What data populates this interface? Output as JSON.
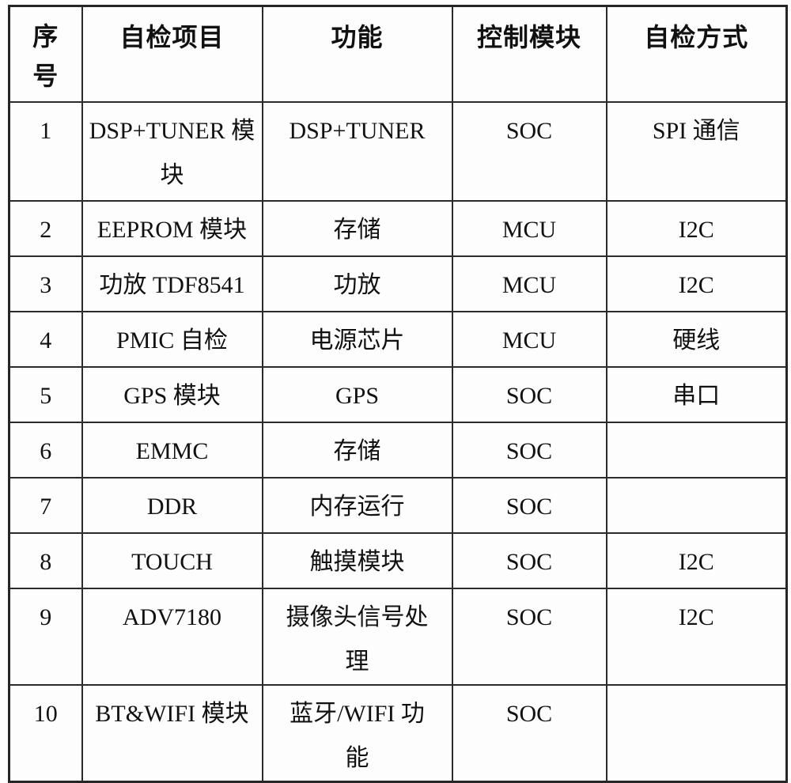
{
  "document": {
    "kind": "scanned-table",
    "language": "zh-CN"
  },
  "colors": {
    "background": "#fefefe",
    "border": "#2b2b2b",
    "text": "#111111"
  },
  "table": {
    "headers": [
      "序号",
      "自检项目",
      "功能",
      "控制模块",
      "自检方式"
    ],
    "rows": [
      [
        "1",
        "DSP+TUNER 模块",
        "DSP+TUNER",
        "SOC",
        "SPI 通信"
      ],
      [
        "2",
        "EEPROM 模块",
        "存储",
        "MCU",
        "I2C"
      ],
      [
        "3",
        "功放 TDF8541",
        "功放",
        "MCU",
        "I2C"
      ],
      [
        "4",
        "PMIC 自检",
        "电源芯片",
        "MCU",
        "硬线"
      ],
      [
        "5",
        "GPS 模块",
        "GPS",
        "SOC",
        "串口"
      ],
      [
        "6",
        "EMMC",
        "存储",
        "SOC",
        ""
      ],
      [
        "7",
        "DDR",
        "内存运行",
        "SOC",
        ""
      ],
      [
        "8",
        "TOUCH",
        "触摸模块",
        "SOC",
        "I2C"
      ],
      [
        "9",
        "ADV7180",
        "摄像头信号处理",
        "SOC",
        "I2C"
      ],
      [
        "10",
        "BT&WIFI 模块",
        "蓝牙/WIFI 功能",
        "SOC",
        ""
      ]
    ]
  }
}
